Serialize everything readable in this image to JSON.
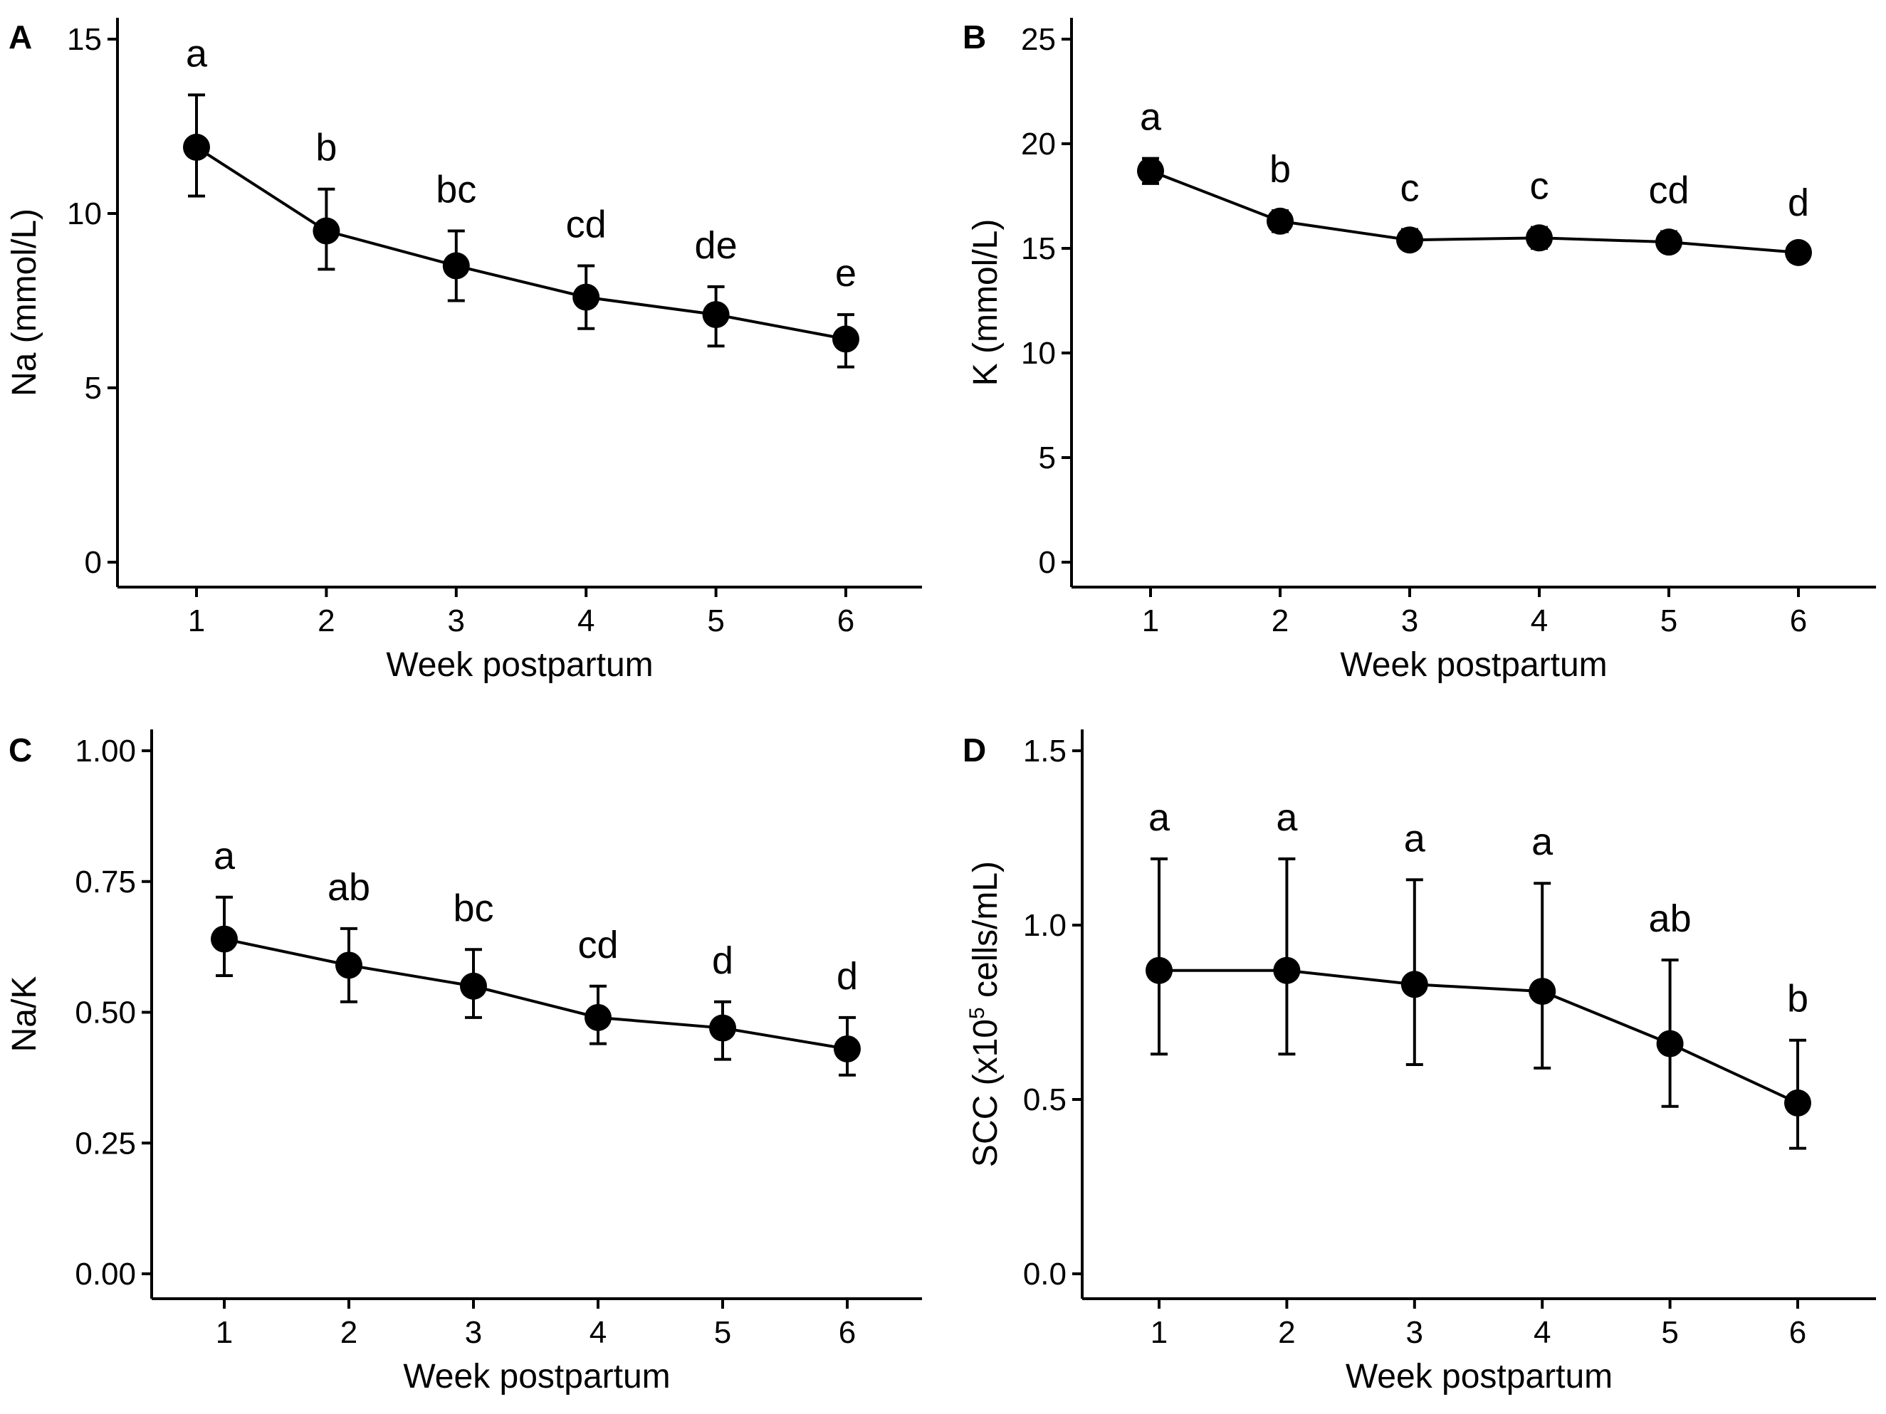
{
  "chart_data": [
    {
      "id": "A",
      "panel_label": "A",
      "type": "line",
      "xlabel": "Week postpartum",
      "ylabel": "Na (mmol/L)",
      "ylim": [
        0,
        15
      ],
      "yticks": [
        0,
        5,
        10,
        15
      ],
      "ytick_labels": [
        "0",
        "5",
        "10",
        "15"
      ],
      "x": [
        1,
        2,
        3,
        4,
        5,
        6
      ],
      "x_tick_labels": [
        "1",
        "2",
        "3",
        "4",
        "5",
        "6"
      ],
      "values": [
        11.9,
        9.5,
        8.5,
        7.6,
        7.1,
        6.4
      ],
      "err_low": [
        10.5,
        8.4,
        7.5,
        6.7,
        6.2,
        5.6
      ],
      "err_high": [
        13.4,
        10.7,
        9.5,
        8.5,
        7.9,
        7.1
      ],
      "letters": [
        "a",
        "b",
        "bc",
        "cd",
        "de",
        "e"
      ]
    },
    {
      "id": "B",
      "panel_label": "B",
      "type": "line",
      "xlabel": "Week postpartum",
      "ylabel": "K (mmol/L)",
      "ylim": [
        0,
        25
      ],
      "yticks": [
        0,
        5,
        10,
        15,
        20,
        25
      ],
      "ytick_labels": [
        "0",
        "5",
        "10",
        "15",
        "20",
        "25"
      ],
      "x": [
        1,
        2,
        3,
        4,
        5,
        6
      ],
      "x_tick_labels": [
        "1",
        "2",
        "3",
        "4",
        "5",
        "6"
      ],
      "values": [
        18.7,
        16.3,
        15.4,
        15.5,
        15.3,
        14.8
      ],
      "err_low": [
        18.1,
        15.8,
        15.0,
        15.0,
        14.9,
        14.4
      ],
      "err_high": [
        19.3,
        16.8,
        15.9,
        16.0,
        15.8,
        15.2
      ],
      "letters": [
        "a",
        "b",
        "c",
        "c",
        "cd",
        "d"
      ]
    },
    {
      "id": "C",
      "panel_label": "C",
      "type": "line",
      "xlabel": "Week postpartum",
      "ylabel": "Na/K",
      "ylim": [
        0,
        1
      ],
      "yticks": [
        0,
        0.25,
        0.5,
        0.75,
        1
      ],
      "ytick_labels": [
        "0.00",
        "0.25",
        "0.50",
        "0.75",
        "1.00"
      ],
      "x": [
        1,
        2,
        3,
        4,
        5,
        6
      ],
      "x_tick_labels": [
        "1",
        "2",
        "3",
        "4",
        "5",
        "6"
      ],
      "values": [
        0.64,
        0.59,
        0.55,
        0.49,
        0.47,
        0.43
      ],
      "err_low": [
        0.57,
        0.52,
        0.49,
        0.44,
        0.41,
        0.38
      ],
      "err_high": [
        0.72,
        0.66,
        0.62,
        0.55,
        0.52,
        0.49
      ],
      "letters": [
        "a",
        "ab",
        "bc",
        "cd",
        "d",
        "d"
      ]
    },
    {
      "id": "D",
      "panel_label": "D",
      "type": "line",
      "xlabel": "Week postpartum",
      "ylabel": "SCC (x10",
      "ylabel_sup": "5",
      "ylabel_tail": " cells/mL)",
      "ylim": [
        0,
        1.5
      ],
      "yticks": [
        0,
        0.5,
        1,
        1.5
      ],
      "ytick_labels": [
        "0.0",
        "0.5",
        "1.0",
        "1.5"
      ],
      "x": [
        1,
        2,
        3,
        4,
        5,
        6
      ],
      "x_tick_labels": [
        "1",
        "2",
        "3",
        "4",
        "5",
        "6"
      ],
      "values": [
        0.87,
        0.87,
        0.83,
        0.81,
        0.66,
        0.49
      ],
      "err_low": [
        0.63,
        0.63,
        0.6,
        0.59,
        0.48,
        0.36
      ],
      "err_high": [
        1.19,
        1.19,
        1.13,
        1.12,
        0.9,
        0.67
      ],
      "letters": [
        "a",
        "a",
        "a",
        "a",
        "ab",
        "b"
      ]
    }
  ]
}
